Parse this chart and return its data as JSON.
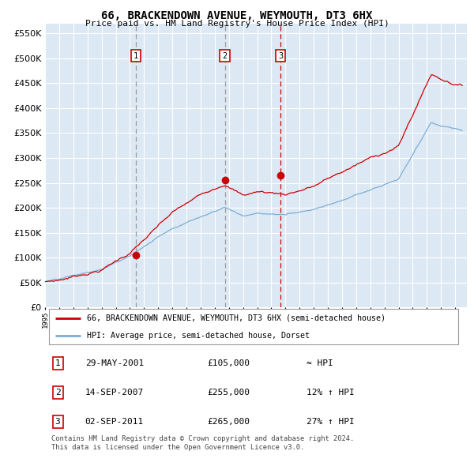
{
  "title": "66, BRACKENDOWN AVENUE, WEYMOUTH, DT3 6HX",
  "subtitle": "Price paid vs. HM Land Registry's House Price Index (HPI)",
  "background_color": "#dce9f5",
  "plot_bg_color": "#dce9f5",
  "grid_color": "#ffffff",
  "red_line_color": "#cc0000",
  "blue_line_color": "#7dadd4",
  "purchase_marker_color": "#cc0000",
  "purchases": [
    {
      "date_num": 2001.41,
      "price": 105000,
      "label": "1"
    },
    {
      "date_num": 2007.71,
      "price": 255000,
      "label": "2"
    },
    {
      "date_num": 2011.67,
      "price": 265000,
      "label": "3"
    }
  ],
  "ylim": [
    0,
    570000
  ],
  "yticks": [
    0,
    50000,
    100000,
    150000,
    200000,
    250000,
    300000,
    350000,
    400000,
    450000,
    500000,
    550000
  ],
  "xlim_start": 1995.0,
  "xlim_end": 2024.83,
  "legend_label_red": "66, BRACKENDOWN AVENUE, WEYMOUTH, DT3 6HX (semi-detached house)",
  "legend_label_blue": "HPI: Average price, semi-detached house, Dorset",
  "table_data": [
    {
      "num": "1",
      "date": "29-MAY-2001",
      "price": "£105,000",
      "vs_hpi": "≈ HPI"
    },
    {
      "num": "2",
      "date": "14-SEP-2007",
      "price": "£255,000",
      "vs_hpi": "12% ↑ HPI"
    },
    {
      "num": "3",
      "date": "02-SEP-2011",
      "price": "£265,000",
      "vs_hpi": "27% ↑ HPI"
    }
  ],
  "footer_text": "Contains HM Land Registry data © Crown copyright and database right 2024.\nThis data is licensed under the Open Government Licence v3.0."
}
